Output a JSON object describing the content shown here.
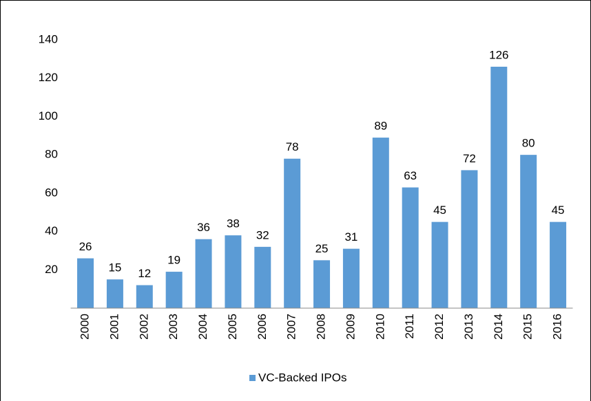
{
  "chart_data": {
    "type": "bar",
    "categories": [
      "2000",
      "2001",
      "2002",
      "2003",
      "2004",
      "2005",
      "2006",
      "2007",
      "2008",
      "2009",
      "2010",
      "2011",
      "2012",
      "2013",
      "2014",
      "2015",
      "2016"
    ],
    "series": [
      {
        "name": "VC-Backed IPOs",
        "color": "#5b9bd5",
        "values": [
          26,
          15,
          12,
          19,
          36,
          38,
          32,
          78,
          25,
          31,
          89,
          63,
          45,
          72,
          126,
          80,
          45
        ]
      }
    ],
    "ylim": [
      0,
      140
    ],
    "yticks": [
      20,
      40,
      60,
      80,
      100,
      120,
      140
    ],
    "grid": false,
    "legend": "bottom"
  }
}
